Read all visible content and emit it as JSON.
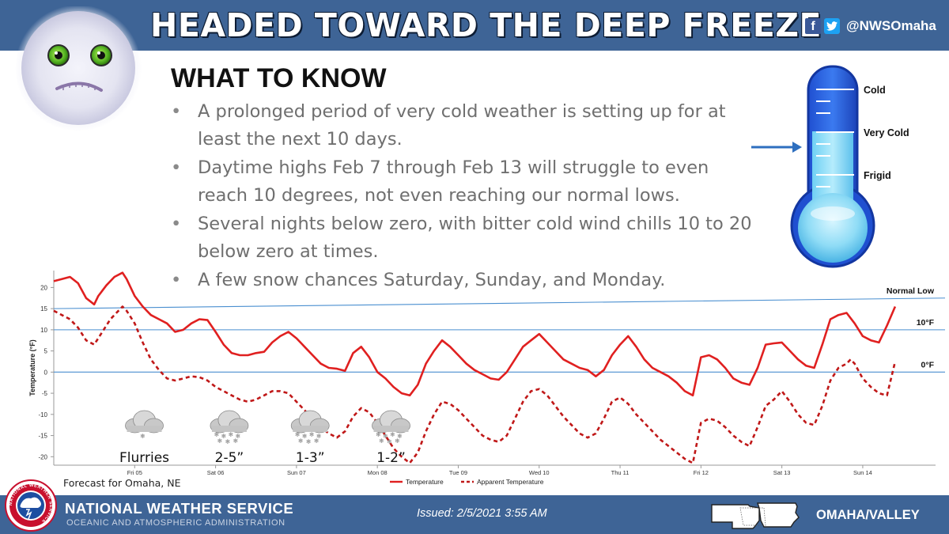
{
  "header": {
    "title": "HEADED TOWARD THE DEEP FREEZE",
    "social_handle": "@NWSOmaha",
    "facebook_icon": "facebook-icon",
    "twitter_icon": "twitter-icon"
  },
  "content": {
    "heading": "WHAT TO KNOW",
    "bullets": [
      "A prolonged period of very cold weather is setting up for at least the next 10 days.",
      "Daytime highs Feb 7 through Feb 13 will struggle to even reach 10 degrees, not even reaching our normal lows.",
      "Several nights below zero, with bitter cold wind chills 10 to 20 below zero at times.",
      "A few snow chances Saturday, Sunday, and Monday."
    ]
  },
  "thermometer": {
    "labels": [
      "Cold",
      "Very Cold",
      "Frigid"
    ],
    "indicated_level": "Very Cold"
  },
  "chart_data": {
    "type": "line",
    "ylabel": "Temperature (°F)",
    "ylim": [
      -22,
      24
    ],
    "yticks": [
      20,
      15,
      10,
      5,
      0,
      -5,
      -10,
      -15,
      -20
    ],
    "xlim": [
      0,
      10.9
    ],
    "x_unit": "days from Feb 4 midnight",
    "day_labels": [
      {
        "x": 1,
        "label": "Fri 05"
      },
      {
        "x": 2,
        "label": "Sat 06"
      },
      {
        "x": 3,
        "label": "Sun 07"
      },
      {
        "x": 4,
        "label": "Mon 08"
      },
      {
        "x": 5,
        "label": "Tue 09"
      },
      {
        "x": 6,
        "label": "Wed 10"
      },
      {
        "x": 7,
        "label": "Thu 11"
      },
      {
        "x": 8,
        "label": "Fri 12"
      },
      {
        "x": 9,
        "label": "Sat 13"
      },
      {
        "x": 10,
        "label": "Sun 14"
      }
    ],
    "reference_lines": [
      {
        "label": "Normal Low",
        "y_start": 15,
        "y_end": 17.5
      },
      {
        "label": "10°F",
        "y_start": 10,
        "y_end": 10
      },
      {
        "label": "0°F",
        "y_start": 0,
        "y_end": 0
      }
    ],
    "series": [
      {
        "name": "Temperature",
        "style": "solid",
        "color": "#e02020",
        "points": [
          [
            0.0,
            21.5
          ],
          [
            0.1,
            22
          ],
          [
            0.2,
            22.5
          ],
          [
            0.3,
            21
          ],
          [
            0.4,
            17.5
          ],
          [
            0.5,
            16
          ],
          [
            0.55,
            18
          ],
          [
            0.65,
            20.5
          ],
          [
            0.75,
            22.5
          ],
          [
            0.85,
            23.5
          ],
          [
            0.9,
            22
          ],
          [
            1.0,
            18
          ],
          [
            1.1,
            15.5
          ],
          [
            1.2,
            13.5
          ],
          [
            1.3,
            12.5
          ],
          [
            1.4,
            11.5
          ],
          [
            1.5,
            9.5
          ],
          [
            1.6,
            10
          ],
          [
            1.7,
            11.5
          ],
          [
            1.8,
            12.5
          ],
          [
            1.9,
            12.3
          ],
          [
            2.0,
            9.5
          ],
          [
            2.1,
            6.5
          ],
          [
            2.2,
            4.5
          ],
          [
            2.3,
            4
          ],
          [
            2.4,
            4
          ],
          [
            2.5,
            4.5
          ],
          [
            2.6,
            4.8
          ],
          [
            2.7,
            7
          ],
          [
            2.8,
            8.5
          ],
          [
            2.9,
            9.5
          ],
          [
            3.0,
            8
          ],
          [
            3.1,
            6
          ],
          [
            3.2,
            4
          ],
          [
            3.3,
            2
          ],
          [
            3.4,
            1
          ],
          [
            3.5,
            0.8
          ],
          [
            3.6,
            0.3
          ],
          [
            3.7,
            4.5
          ],
          [
            3.8,
            6
          ],
          [
            3.9,
            3.5
          ],
          [
            4.0,
            0
          ],
          [
            4.1,
            -1.5
          ],
          [
            4.2,
            -3.5
          ],
          [
            4.3,
            -5
          ],
          [
            4.4,
            -5.5
          ],
          [
            4.5,
            -3
          ],
          [
            4.6,
            2
          ],
          [
            4.7,
            5
          ],
          [
            4.8,
            7.5
          ],
          [
            4.9,
            6
          ],
          [
            5.0,
            4
          ],
          [
            5.1,
            2
          ],
          [
            5.2,
            0.5
          ],
          [
            5.3,
            -0.5
          ],
          [
            5.4,
            -1.5
          ],
          [
            5.5,
            -1.8
          ],
          [
            5.6,
            0
          ],
          [
            5.7,
            3
          ],
          [
            5.8,
            6
          ],
          [
            5.9,
            7.5
          ],
          [
            6.0,
            9
          ],
          [
            6.1,
            7
          ],
          [
            6.2,
            5
          ],
          [
            6.3,
            3
          ],
          [
            6.4,
            2
          ],
          [
            6.5,
            1
          ],
          [
            6.6,
            0.5
          ],
          [
            6.7,
            -1
          ],
          [
            6.8,
            0.5
          ],
          [
            6.9,
            4
          ],
          [
            7.0,
            6.5
          ],
          [
            7.1,
            8.5
          ],
          [
            7.2,
            6
          ],
          [
            7.3,
            3
          ],
          [
            7.4,
            1
          ],
          [
            7.5,
            0
          ],
          [
            7.6,
            -1
          ],
          [
            7.7,
            -2.5
          ],
          [
            7.8,
            -4.5
          ],
          [
            7.9,
            -5.5
          ],
          [
            8.0,
            3.5
          ],
          [
            8.1,
            4
          ],
          [
            8.2,
            3
          ],
          [
            8.3,
            1
          ],
          [
            8.4,
            -1.5
          ],
          [
            8.5,
            -2.5
          ],
          [
            8.6,
            -3
          ],
          [
            8.7,
            1
          ],
          [
            8.8,
            6.5
          ],
          [
            8.9,
            6.8
          ],
          [
            9.0,
            7
          ],
          [
            9.1,
            5
          ],
          [
            9.2,
            3
          ],
          [
            9.3,
            1.5
          ],
          [
            9.4,
            1
          ],
          [
            9.5,
            6.5
          ],
          [
            9.6,
            12.5
          ],
          [
            9.7,
            13.5
          ],
          [
            9.8,
            14
          ],
          [
            9.9,
            11.5
          ],
          [
            10.0,
            8.5
          ],
          [
            10.1,
            7.5
          ],
          [
            10.2,
            7
          ],
          [
            10.3,
            11
          ],
          [
            10.4,
            15.5
          ]
        ]
      },
      {
        "name": "Apparent Temperature",
        "style": "dashed",
        "color": "#c01818",
        "points": [
          [
            0.0,
            14.5
          ],
          [
            0.1,
            13.5
          ],
          [
            0.2,
            12.5
          ],
          [
            0.3,
            10.5
          ],
          [
            0.4,
            7.5
          ],
          [
            0.5,
            6.5
          ],
          [
            0.6,
            9.5
          ],
          [
            0.7,
            12.5
          ],
          [
            0.8,
            14.5
          ],
          [
            0.85,
            15.5
          ],
          [
            0.9,
            14.5
          ],
          [
            1.0,
            11.5
          ],
          [
            1.1,
            7
          ],
          [
            1.2,
            3
          ],
          [
            1.3,
            0.5
          ],
          [
            1.4,
            -1.5
          ],
          [
            1.5,
            -2
          ],
          [
            1.6,
            -1.5
          ],
          [
            1.7,
            -1
          ],
          [
            1.8,
            -1.2
          ],
          [
            1.9,
            -2
          ],
          [
            2.0,
            -3.5
          ],
          [
            2.1,
            -4.5
          ],
          [
            2.2,
            -5.5
          ],
          [
            2.3,
            -6.5
          ],
          [
            2.4,
            -7
          ],
          [
            2.5,
            -6.5
          ],
          [
            2.6,
            -5.5
          ],
          [
            2.7,
            -4.5
          ],
          [
            2.8,
            -4.5
          ],
          [
            2.9,
            -5
          ],
          [
            3.0,
            -7
          ],
          [
            3.1,
            -9
          ],
          [
            3.2,
            -11
          ],
          [
            3.3,
            -13
          ],
          [
            3.4,
            -14.5
          ],
          [
            3.5,
            -15.5
          ],
          [
            3.6,
            -14
          ],
          [
            3.7,
            -10.5
          ],
          [
            3.8,
            -8.5
          ],
          [
            3.9,
            -9.5
          ],
          [
            4.0,
            -12
          ],
          [
            4.1,
            -15
          ],
          [
            4.2,
            -18
          ],
          [
            4.3,
            -20
          ],
          [
            4.4,
            -21.5
          ],
          [
            4.5,
            -19
          ],
          [
            4.6,
            -14
          ],
          [
            4.7,
            -10
          ],
          [
            4.8,
            -7
          ],
          [
            4.9,
            -7.5
          ],
          [
            5.0,
            -9
          ],
          [
            5.1,
            -11
          ],
          [
            5.2,
            -13
          ],
          [
            5.3,
            -15
          ],
          [
            5.4,
            -16
          ],
          [
            5.5,
            -16.5
          ],
          [
            5.6,
            -15
          ],
          [
            5.7,
            -11
          ],
          [
            5.8,
            -7
          ],
          [
            5.9,
            -4.5
          ],
          [
            6.0,
            -4
          ],
          [
            6.1,
            -5.5
          ],
          [
            6.2,
            -8
          ],
          [
            6.3,
            -10.5
          ],
          [
            6.4,
            -12.5
          ],
          [
            6.5,
            -14.5
          ],
          [
            6.6,
            -15.5
          ],
          [
            6.7,
            -14.5
          ],
          [
            6.8,
            -11
          ],
          [
            6.9,
            -7
          ],
          [
            7.0,
            -6
          ],
          [
            7.1,
            -7.5
          ],
          [
            7.2,
            -10
          ],
          [
            7.3,
            -12
          ],
          [
            7.4,
            -14
          ],
          [
            7.5,
            -16
          ],
          [
            7.6,
            -17.5
          ],
          [
            7.7,
            -19
          ],
          [
            7.8,
            -20.5
          ],
          [
            7.9,
            -21.5
          ],
          [
            8.0,
            -12
          ],
          [
            8.1,
            -11
          ],
          [
            8.2,
            -11.5
          ],
          [
            8.3,
            -13
          ],
          [
            8.4,
            -15
          ],
          [
            8.5,
            -16.5
          ],
          [
            8.6,
            -17.5
          ],
          [
            8.7,
            -13
          ],
          [
            8.8,
            -8
          ],
          [
            8.9,
            -6.5
          ],
          [
            9.0,
            -4.5
          ],
          [
            9.1,
            -7
          ],
          [
            9.2,
            -10
          ],
          [
            9.3,
            -12
          ],
          [
            9.4,
            -12.5
          ],
          [
            9.5,
            -8
          ],
          [
            9.6,
            -2
          ],
          [
            9.7,
            1
          ],
          [
            9.8,
            2
          ],
          [
            9.85,
            3
          ],
          [
            9.9,
            2
          ],
          [
            10.0,
            -1.5
          ],
          [
            10.1,
            -3.5
          ],
          [
            10.2,
            -5
          ],
          [
            10.3,
            -5.5
          ],
          [
            10.4,
            2.5
          ]
        ]
      }
    ],
    "legend": [
      "Temperature",
      "Apparent Temperature"
    ],
    "legend_position": "bottom",
    "snow_events": [
      {
        "x": 1.1,
        "label": "Flurries",
        "icon": "cloud-flurries-icon"
      },
      {
        "x": 2.15,
        "label": "2-5”",
        "icon": "cloud-snow-icon"
      },
      {
        "x": 3.15,
        "label": "1-3”",
        "icon": "cloud-snow-icon"
      },
      {
        "x": 4.15,
        "label": "1-2”",
        "icon": "cloud-snow-icon"
      }
    ],
    "footnote": "Forecast for Omaha, NE"
  },
  "footer": {
    "org_name": "NATIONAL WEATHER SERVICE",
    "org_sub": "OCEANIC AND ATMOSPHERIC ADMINISTRATION",
    "issued": "Issued: 2/5/2021 3:55 AM",
    "office": "OMAHA/VALLEY",
    "logo_text": "NATIONAL WEATHER SERVICE"
  },
  "colors": {
    "banner": "#3e6496",
    "temperature_line": "#e02020",
    "reference_line": "#4a8fd0"
  }
}
